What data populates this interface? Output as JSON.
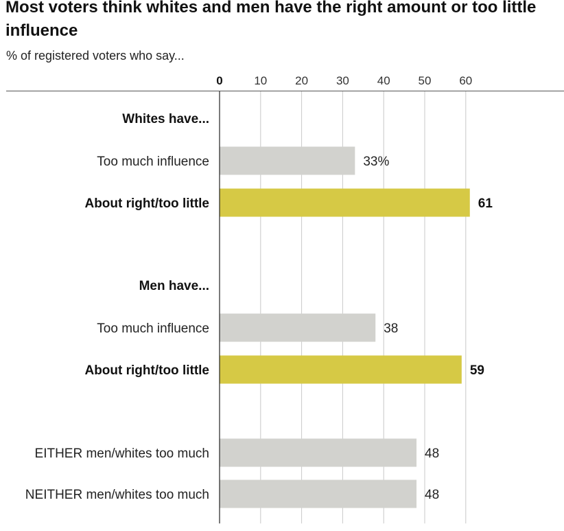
{
  "header": {
    "title": "Most voters think whites and men have the right amount or too little influence",
    "subtitle": "% of registered voters who say..."
  },
  "colors": {
    "highlight": "#d6c945",
    "muted": "#d2d2ce",
    "grid": "#c8c8c8",
    "axis": "#222222"
  },
  "chart_data": {
    "type": "bar",
    "orientation": "horizontal",
    "title": "Most voters think whites and men have the right amount or too little influence",
    "subtitle": "% of registered voters who say...",
    "xlim": [
      0,
      60
    ],
    "ticks": [
      0,
      10,
      20,
      30,
      40,
      50,
      60
    ],
    "grid": true,
    "groups": [
      {
        "label": "Whites have..."
      },
      {
        "label": "Men have..."
      }
    ],
    "rows": [
      {
        "group": 0,
        "label": "Too much influence",
        "value": 33,
        "value_label": "33%",
        "highlight": false
      },
      {
        "group": 0,
        "label": "About right/too little",
        "value": 61,
        "value_label": "61",
        "highlight": true
      },
      {
        "group": 1,
        "label": "Too much influence",
        "value": 38,
        "value_label": "38",
        "highlight": false
      },
      {
        "group": 1,
        "label": "About right/too little",
        "value": 59,
        "value_label": "59",
        "highlight": true
      },
      {
        "group": null,
        "label": "EITHER men/whites too much",
        "value": 48,
        "value_label": "48",
        "highlight": false
      },
      {
        "group": null,
        "label": "NEITHER men/whites too much",
        "value": 48,
        "value_label": "48",
        "highlight": false
      }
    ]
  }
}
